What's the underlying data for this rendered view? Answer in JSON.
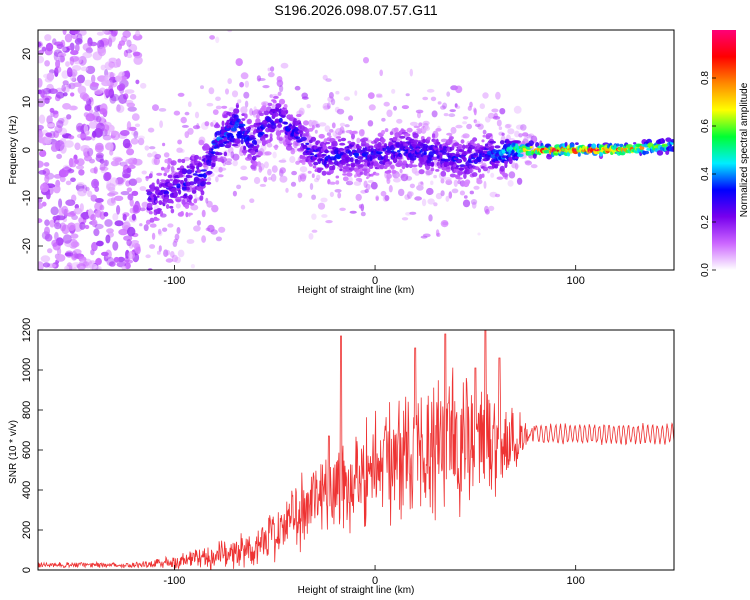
{
  "title": "S196.2026.098.07.57.G11",
  "chart_data": [
    {
      "type": "heatmap",
      "name": "spectrogram",
      "xlabel": "Height of straight line (km)",
      "ylabel": "Frequency (Hz)",
      "xlim": [
        -168,
        149
      ],
      "ylim": [
        -25,
        25
      ],
      "xticks": [
        -100,
        0,
        100
      ],
      "yticks": [
        -20,
        -10,
        0,
        10,
        20
      ],
      "colorbar": {
        "label": "Normalized spectral amplitude",
        "range": [
          0.0,
          1.0
        ],
        "ticks": [
          0.0,
          0.2,
          0.4,
          0.6,
          0.8
        ],
        "tick_labels": [
          "0.0",
          "0.2",
          "0.4",
          "0.6",
          "0.8"
        ],
        "colors": [
          "#ffffff",
          "#cc66ff",
          "#7700ee",
          "#0000ff",
          "#00eeff",
          "#00ff33",
          "#ffff00",
          "#ff8800",
          "#ff0000",
          "#ff0077"
        ]
      },
      "ridge": {
        "x": [
          -113,
          -105,
          -95,
          -85,
          -80,
          -75,
          -68,
          -60,
          -55,
          -48,
          -42,
          -38,
          -32,
          -25,
          -15,
          0,
          15,
          30,
          45,
          55,
          62,
          68,
          72,
          80,
          100,
          120,
          149
        ],
        "freq": [
          -10,
          -9,
          -7,
          -5,
          1,
          3,
          5,
          1,
          5,
          7,
          4,
          3,
          0,
          -2,
          -1,
          -1,
          0,
          -1,
          -2,
          -1,
          -1,
          0,
          0,
          0,
          0,
          0,
          1
        ],
        "amplitude": [
          0.25,
          0.25,
          0.3,
          0.3,
          0.35,
          0.35,
          0.35,
          0.3,
          0.3,
          0.3,
          0.3,
          0.3,
          0.3,
          0.3,
          0.3,
          0.3,
          0.3,
          0.3,
          0.3,
          0.3,
          0.4,
          0.5,
          0.6,
          0.85,
          0.85,
          0.85,
          0.55
        ],
        "width_hz": [
          7,
          7,
          7,
          7,
          6,
          6,
          6,
          6,
          5,
          5,
          5,
          5,
          5,
          5,
          5,
          5,
          5,
          5,
          5,
          5,
          4,
          3,
          2,
          1.3,
          1.3,
          1.3,
          1.5
        ]
      },
      "noise_region": {
        "x_range": [
          -168,
          -118
        ],
        "freq_range": [
          -25,
          25
        ]
      }
    },
    {
      "type": "line",
      "name": "snr",
      "xlabel": "Height of straight line (km)",
      "ylabel": "SNR (10 * v/v)",
      "xlim": [
        -168,
        149
      ],
      "ylim": [
        0,
        1200
      ],
      "xticks": [
        -100,
        0,
        100
      ],
      "yticks": [
        0,
        200,
        400,
        600,
        800,
        1000,
        1200
      ],
      "color": "#ee3333",
      "envelope": {
        "x": [
          -168,
          -140,
          -120,
          -100,
          -80,
          -60,
          -50,
          -40,
          -30,
          -20,
          -10,
          0,
          10,
          20,
          30,
          40,
          50,
          60,
          70,
          75,
          80,
          100,
          120,
          149
        ],
        "mean": [
          25,
          25,
          25,
          40,
          70,
          110,
          180,
          280,
          340,
          400,
          460,
          520,
          560,
          600,
          630,
          650,
          650,
          640,
          650,
          690,
          680,
          680,
          680,
          680
        ],
        "spread": [
          15,
          15,
          15,
          40,
          70,
          100,
          140,
          180,
          220,
          260,
          280,
          300,
          320,
          340,
          380,
          380,
          360,
          300,
          200,
          70,
          50,
          50,
          50,
          50
        ]
      },
      "peaks": [
        {
          "x": -17,
          "y": 1170
        },
        {
          "x": -23,
          "y": 670
        },
        {
          "x": 20,
          "y": 1110
        },
        {
          "x": 35,
          "y": 1180
        },
        {
          "x": 50,
          "y": 1010
        },
        {
          "x": 55,
          "y": 1200
        },
        {
          "x": 62,
          "y": 1060
        }
      ]
    }
  ]
}
